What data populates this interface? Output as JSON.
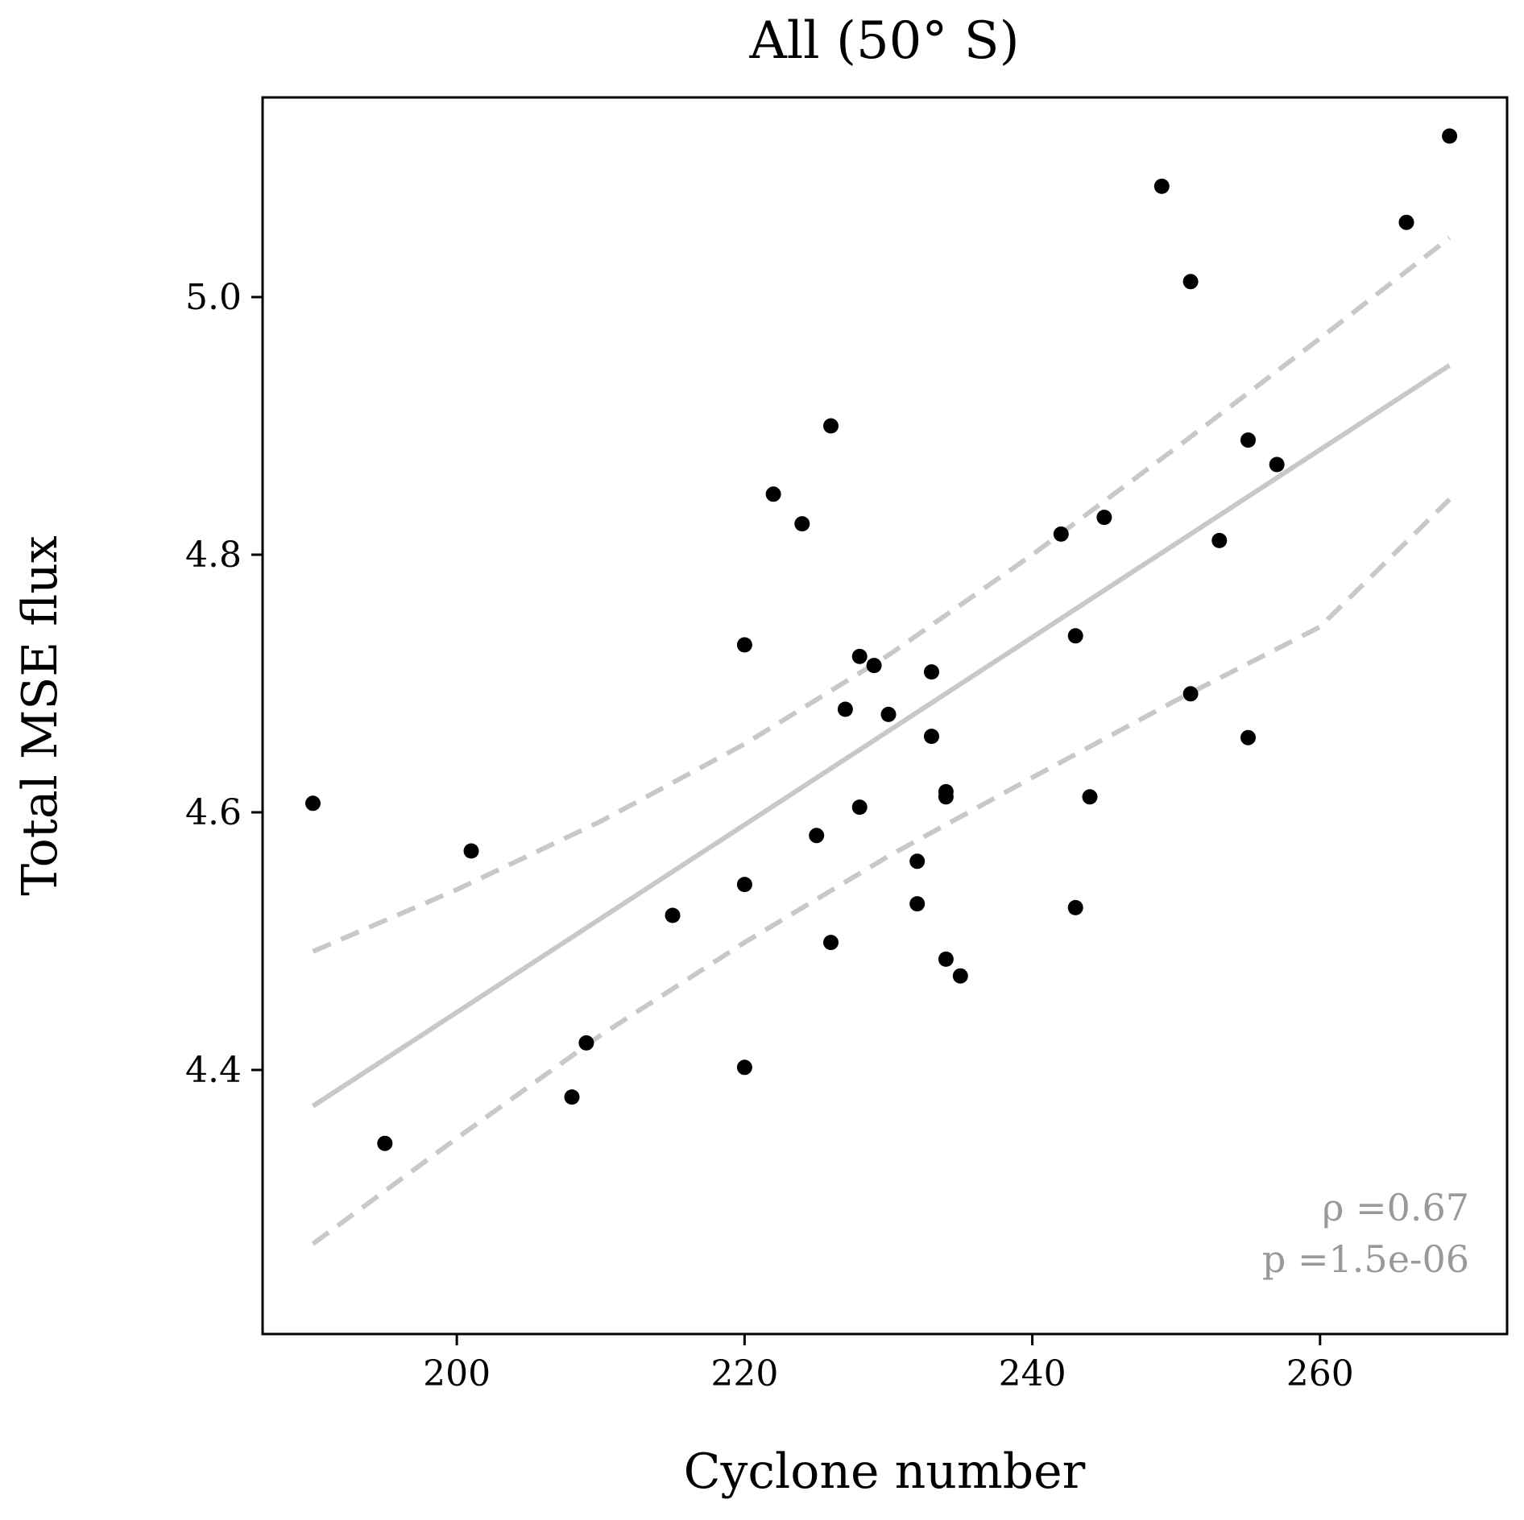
{
  "chart_data": {
    "type": "scatter",
    "title": "All (50° S)",
    "xlabel": "Cyclone number",
    "ylabel": "Total MSE flux",
    "xlim": [
      186.5,
      273.0
    ],
    "ylim": [
      4.195,
      5.155
    ],
    "xticks": [
      200,
      220,
      240,
      260
    ],
    "yticks": [
      4.4,
      4.6,
      4.8,
      5.0
    ],
    "xtick_labels": [
      "200",
      "220",
      "240",
      "260"
    ],
    "ytick_labels": [
      "4.4",
      "4.6",
      "4.8",
      "5.0"
    ],
    "grid": false,
    "legend": null,
    "points": {
      "x": [
        190,
        195,
        201,
        208,
        209,
        215,
        220,
        220,
        220,
        222,
        224,
        225,
        226,
        226,
        227,
        228,
        228,
        229,
        230,
        232,
        232,
        233,
        233,
        234,
        234,
        234,
        235,
        242,
        243,
        243,
        244,
        245,
        249,
        251,
        251,
        253,
        255,
        255,
        257,
        266,
        269
      ],
      "y": [
        4.607,
        4.343,
        4.57,
        4.379,
        4.421,
        4.52,
        4.544,
        4.402,
        4.73,
        4.847,
        4.824,
        4.582,
        4.9,
        4.499,
        4.68,
        4.604,
        4.721,
        4.714,
        4.676,
        4.562,
        4.529,
        4.659,
        4.709,
        4.612,
        4.616,
        4.486,
        4.473,
        4.816,
        4.737,
        4.526,
        4.612,
        4.829,
        5.086,
        4.692,
        5.012,
        4.811,
        4.658,
        4.889,
        4.87,
        5.058,
        5.125
      ]
    },
    "fit_line": {
      "x": [
        190,
        269
      ],
      "y": [
        4.372,
        4.947
      ]
    },
    "confidence_band": {
      "upper": {
        "x": [
          190,
          200,
          210,
          220,
          230,
          240,
          250,
          260,
          269
        ],
        "y": [
          4.492,
          4.54,
          4.593,
          4.653,
          4.722,
          4.8,
          4.883,
          4.968,
          5.046
        ]
      },
      "lower": {
        "x": [
          190,
          200,
          210,
          220,
          230,
          240,
          250,
          260,
          269
        ],
        "y": [
          4.265,
          4.347,
          4.427,
          4.499,
          4.566,
          4.627,
          4.687,
          4.744,
          4.843
        ]
      }
    },
    "annotations": [
      "ρ =0.67",
      "p =1.5e-06"
    ],
    "colors": {
      "points": "#000000",
      "fit": "#c8c8c8",
      "annotation": "#999999",
      "frame": "#000000"
    }
  }
}
